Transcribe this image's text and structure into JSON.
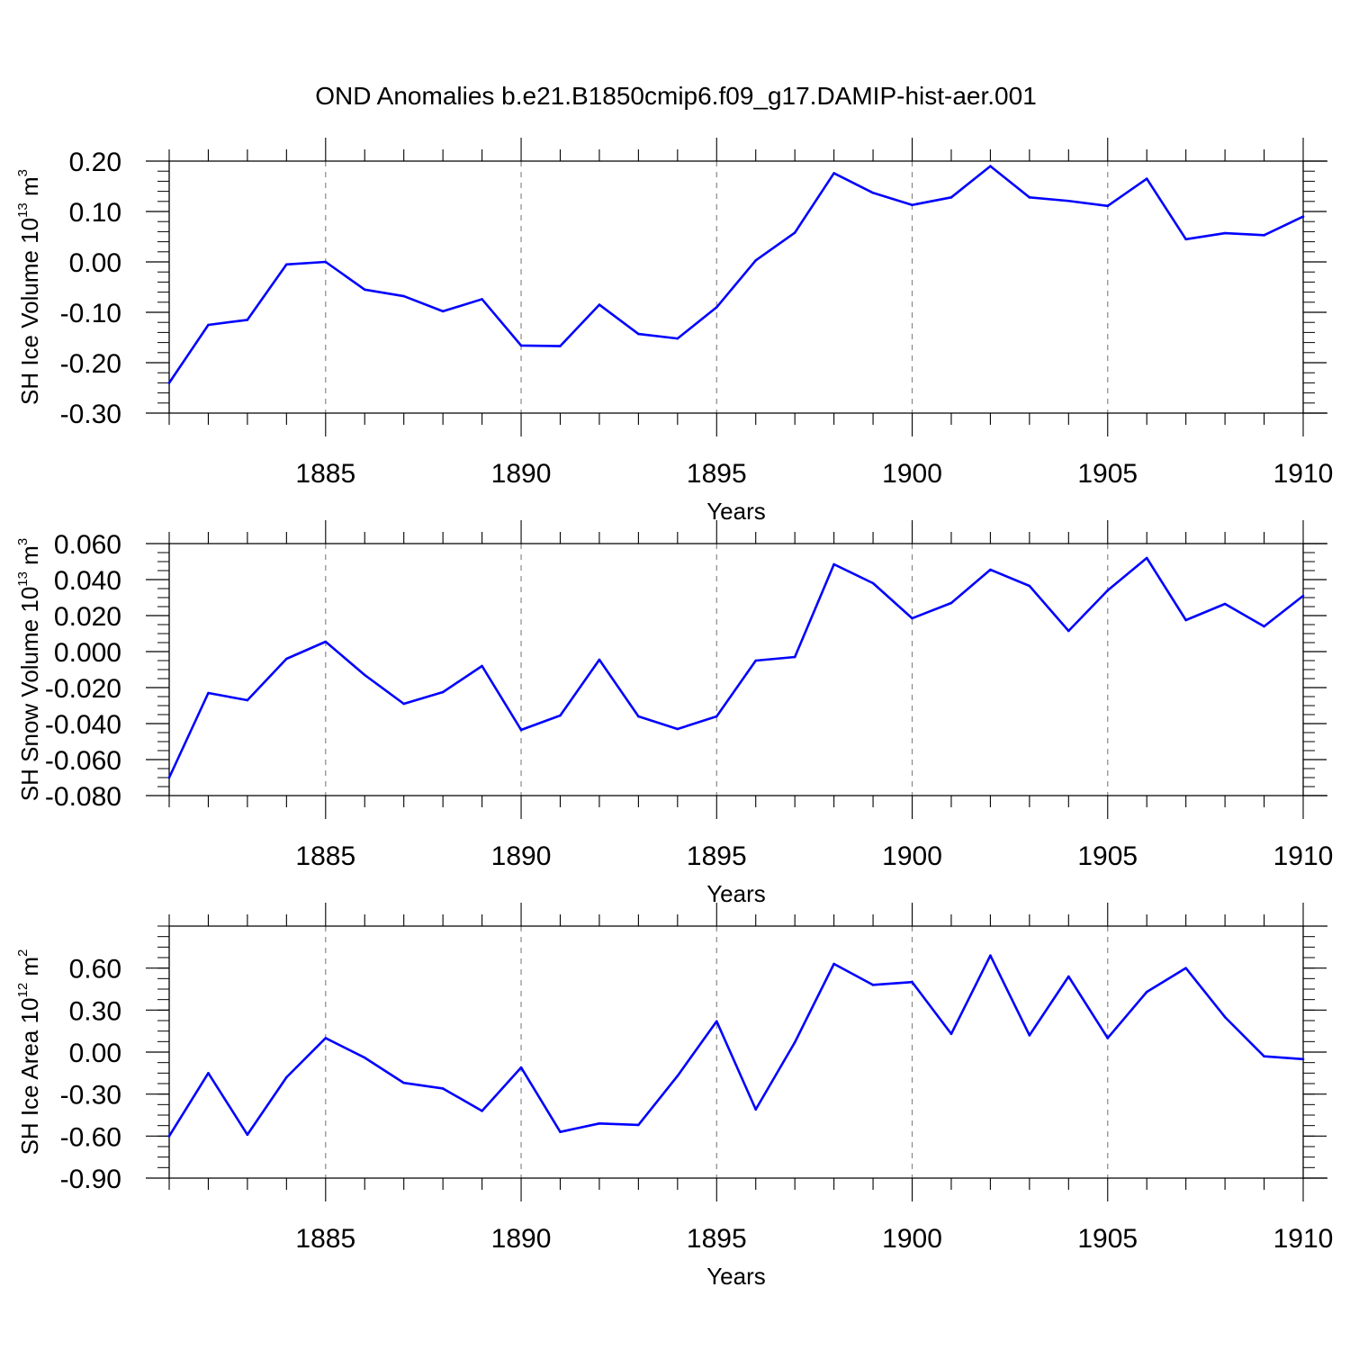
{
  "figure": {
    "title": "OND Anomalies b.e21.B1850cmip6.f09_g17.DAMIP-hist-aer.001"
  },
  "chart_data": [
    {
      "type": "line",
      "title": "OND Anomalies b.e21.B1850cmip6.f09_g17.DAMIP-hist-aer.001",
      "xlabel": "Years",
      "ylabel": {
        "text": "SH Ice Volume 10",
        "exponent": "13",
        "unit": " m",
        "unit_exponent": "3"
      },
      "x": [
        1881,
        1882,
        1883,
        1884,
        1885,
        1886,
        1887,
        1888,
        1889,
        1890,
        1891,
        1892,
        1893,
        1894,
        1895,
        1896,
        1897,
        1898,
        1899,
        1900,
        1901,
        1902,
        1903,
        1904,
        1905,
        1906,
        1907,
        1908,
        1909,
        1910
      ],
      "y": [
        -0.24,
        -0.125,
        -0.115,
        -0.005,
        0.0,
        -0.055,
        -0.068,
        -0.098,
        -0.074,
        -0.166,
        -0.167,
        -0.085,
        -0.143,
        -0.152,
        -0.09,
        0.003,
        0.058,
        0.176,
        0.137,
        0.113,
        0.128,
        0.19,
        0.128,
        0.121,
        0.111,
        0.165,
        0.045,
        0.057,
        0.053,
        0.09
      ],
      "xlim": [
        1881,
        1910
      ],
      "ylim": [
        -0.3,
        0.2
      ],
      "x_ticks": [
        "1885",
        "1890",
        "1895",
        "1900",
        "1905",
        "1910"
      ],
      "y_ticks": [
        "0.20",
        "0.10",
        "0.00",
        "-0.10",
        "-0.20",
        "-0.30"
      ],
      "y_tick_values": [
        0.2,
        0.1,
        0.0,
        -0.1,
        -0.2,
        -0.3
      ],
      "y_minor_step": 0.02,
      "grid": "vertical dashed at major x ticks",
      "line_color": "#0000ff"
    },
    {
      "type": "line",
      "xlabel": "Years",
      "ylabel": {
        "text": "SH Snow Volume 10",
        "exponent": "13",
        "unit": " m",
        "unit_exponent": "3"
      },
      "x": [
        1881,
        1882,
        1883,
        1884,
        1885,
        1886,
        1887,
        1888,
        1889,
        1890,
        1891,
        1892,
        1893,
        1894,
        1895,
        1896,
        1897,
        1898,
        1899,
        1900,
        1901,
        1902,
        1903,
        1904,
        1905,
        1906,
        1907,
        1908,
        1909,
        1910
      ],
      "y": [
        -0.07,
        -0.023,
        -0.027,
        -0.004,
        0.0055,
        -0.013,
        -0.029,
        -0.0225,
        -0.008,
        -0.0435,
        -0.0355,
        -0.0045,
        -0.036,
        -0.043,
        -0.036,
        -0.005,
        -0.003,
        0.0485,
        0.038,
        0.0185,
        0.027,
        0.0455,
        0.0365,
        0.0115,
        0.034,
        0.052,
        0.0175,
        0.0265,
        0.014,
        0.031
      ],
      "xlim": [
        1881,
        1910
      ],
      "ylim": [
        -0.08,
        0.06
      ],
      "x_ticks": [
        "1885",
        "1890",
        "1895",
        "1900",
        "1905",
        "1910"
      ],
      "y_ticks": [
        "0.060",
        "0.040",
        "0.020",
        "0.000",
        "-0.020",
        "-0.040",
        "-0.060",
        "-0.080"
      ],
      "y_tick_values": [
        0.06,
        0.04,
        0.02,
        0.0,
        -0.02,
        -0.04,
        -0.06,
        -0.08
      ],
      "y_minor_step": 0.005,
      "grid": "vertical dashed at major x ticks",
      "line_color": "#0000ff"
    },
    {
      "type": "line",
      "xlabel": "Years",
      "ylabel": {
        "text": "SH Ice Area 10",
        "exponent": "12",
        "unit": " m",
        "unit_exponent": "2"
      },
      "x": [
        1881,
        1882,
        1883,
        1884,
        1885,
        1886,
        1887,
        1888,
        1889,
        1890,
        1891,
        1892,
        1893,
        1894,
        1895,
        1896,
        1897,
        1898,
        1899,
        1900,
        1901,
        1902,
        1903,
        1904,
        1905,
        1906,
        1907,
        1908,
        1909,
        1910
      ],
      "y": [
        -0.6,
        -0.15,
        -0.59,
        -0.18,
        0.1,
        -0.04,
        -0.22,
        -0.26,
        -0.42,
        -0.11,
        -0.57,
        -0.51,
        -0.52,
        -0.17,
        0.22,
        -0.41,
        0.07,
        0.63,
        0.48,
        0.5,
        0.13,
        0.69,
        0.12,
        0.54,
        0.1,
        0.43,
        0.6,
        0.25,
        -0.03,
        -0.05
      ],
      "xlim": [
        1881,
        1910
      ],
      "ylim": [
        -0.9,
        0.9
      ],
      "x_ticks": [
        "1885",
        "1890",
        "1895",
        "1900",
        "1905",
        "1910"
      ],
      "y_ticks": [
        "0.60",
        "0.30",
        "0.00",
        "-0.30",
        "-0.60",
        "-0.90"
      ],
      "y_tick_values": [
        0.6,
        0.3,
        0.0,
        -0.3,
        -0.6,
        -0.9
      ],
      "y_minor_step": 0.075,
      "grid": "vertical dashed at major x ticks",
      "line_color": "#0000ff"
    }
  ]
}
